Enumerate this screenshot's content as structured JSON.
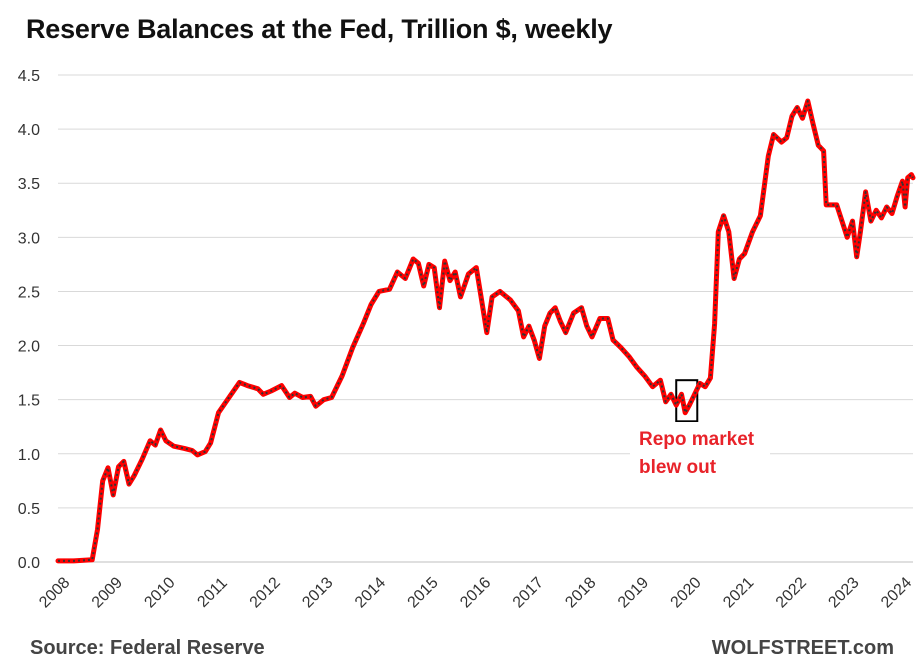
{
  "chart_data": {
    "type": "line",
    "title": "Reserve Balances at the Fed, Trillion $, weekly",
    "xlabel": "",
    "ylabel": "",
    "xlim": [
      2008,
      2024.25
    ],
    "ylim": [
      0,
      4.5
    ],
    "y_ticks": [
      "0.0",
      "0.5",
      "1.0",
      "1.5",
      "2.0",
      "2.5",
      "3.0",
      "3.5",
      "4.0",
      "4.5"
    ],
    "x_ticks": [
      "2008",
      "2009",
      "2010",
      "2011",
      "2012",
      "2013",
      "2014",
      "2015",
      "2016",
      "2017",
      "2018",
      "2019",
      "2020",
      "2021",
      "2022",
      "2023",
      "2024"
    ],
    "grid": "horizontal",
    "series": [
      {
        "name": "",
        "color": "#ff0000",
        "overlay_color": "#333333",
        "points": [
          [
            2008.0,
            0.01
          ],
          [
            2008.3,
            0.01
          ],
          [
            2008.65,
            0.02
          ],
          [
            2008.75,
            0.3
          ],
          [
            2008.85,
            0.75
          ],
          [
            2008.95,
            0.87
          ],
          [
            2009.05,
            0.62
          ],
          [
            2009.15,
            0.88
          ],
          [
            2009.25,
            0.93
          ],
          [
            2009.35,
            0.72
          ],
          [
            2009.45,
            0.8
          ],
          [
            2009.6,
            0.95
          ],
          [
            2009.75,
            1.12
          ],
          [
            2009.85,
            1.08
          ],
          [
            2009.95,
            1.22
          ],
          [
            2010.05,
            1.12
          ],
          [
            2010.2,
            1.07
          ],
          [
            2010.4,
            1.05
          ],
          [
            2010.55,
            1.03
          ],
          [
            2010.65,
            0.99
          ],
          [
            2010.8,
            1.02
          ],
          [
            2010.9,
            1.1
          ],
          [
            2011.05,
            1.38
          ],
          [
            2011.25,
            1.52
          ],
          [
            2011.45,
            1.66
          ],
          [
            2011.6,
            1.63
          ],
          [
            2011.8,
            1.6
          ],
          [
            2011.9,
            1.55
          ],
          [
            2012.05,
            1.58
          ],
          [
            2012.25,
            1.63
          ],
          [
            2012.4,
            1.52
          ],
          [
            2012.5,
            1.56
          ],
          [
            2012.65,
            1.52
          ],
          [
            2012.8,
            1.53
          ],
          [
            2012.9,
            1.44
          ],
          [
            2013.05,
            1.5
          ],
          [
            2013.2,
            1.52
          ],
          [
            2013.4,
            1.72
          ],
          [
            2013.6,
            1.98
          ],
          [
            2013.8,
            2.2
          ],
          [
            2013.95,
            2.38
          ],
          [
            2014.1,
            2.5
          ],
          [
            2014.3,
            2.52
          ],
          [
            2014.45,
            2.68
          ],
          [
            2014.6,
            2.62
          ],
          [
            2014.75,
            2.8
          ],
          [
            2014.85,
            2.76
          ],
          [
            2014.95,
            2.55
          ],
          [
            2015.05,
            2.75
          ],
          [
            2015.15,
            2.72
          ],
          [
            2015.25,
            2.35
          ],
          [
            2015.35,
            2.78
          ],
          [
            2015.45,
            2.6
          ],
          [
            2015.55,
            2.68
          ],
          [
            2015.65,
            2.45
          ],
          [
            2015.8,
            2.66
          ],
          [
            2015.95,
            2.72
          ],
          [
            2016.05,
            2.42
          ],
          [
            2016.15,
            2.12
          ],
          [
            2016.25,
            2.45
          ],
          [
            2016.4,
            2.5
          ],
          [
            2016.6,
            2.42
          ],
          [
            2016.75,
            2.32
          ],
          [
            2016.85,
            2.08
          ],
          [
            2016.95,
            2.18
          ],
          [
            2017.05,
            2.05
          ],
          [
            2017.15,
            1.88
          ],
          [
            2017.25,
            2.18
          ],
          [
            2017.35,
            2.3
          ],
          [
            2017.45,
            2.35
          ],
          [
            2017.55,
            2.22
          ],
          [
            2017.65,
            2.12
          ],
          [
            2017.8,
            2.3
          ],
          [
            2017.95,
            2.35
          ],
          [
            2018.05,
            2.18
          ],
          [
            2018.15,
            2.08
          ],
          [
            2018.3,
            2.25
          ],
          [
            2018.45,
            2.25
          ],
          [
            2018.55,
            2.05
          ],
          [
            2018.7,
            1.98
          ],
          [
            2018.85,
            1.9
          ],
          [
            2019.0,
            1.8
          ],
          [
            2019.15,
            1.72
          ],
          [
            2019.3,
            1.62
          ],
          [
            2019.45,
            1.68
          ],
          [
            2019.55,
            1.48
          ],
          [
            2019.65,
            1.55
          ],
          [
            2019.75,
            1.45
          ],
          [
            2019.85,
            1.55
          ],
          [
            2019.92,
            1.38
          ],
          [
            2020.0,
            1.45
          ],
          [
            2020.1,
            1.55
          ],
          [
            2020.2,
            1.65
          ],
          [
            2020.3,
            1.62
          ],
          [
            2020.4,
            1.7
          ],
          [
            2020.48,
            2.2
          ],
          [
            2020.55,
            3.05
          ],
          [
            2020.65,
            3.2
          ],
          [
            2020.75,
            3.05
          ],
          [
            2020.85,
            2.62
          ],
          [
            2020.95,
            2.8
          ],
          [
            2021.05,
            2.85
          ],
          [
            2021.2,
            3.05
          ],
          [
            2021.35,
            3.2
          ],
          [
            2021.5,
            3.75
          ],
          [
            2021.6,
            3.95
          ],
          [
            2021.75,
            3.88
          ],
          [
            2021.85,
            3.92
          ],
          [
            2021.95,
            4.12
          ],
          [
            2022.05,
            4.2
          ],
          [
            2022.15,
            4.1
          ],
          [
            2022.25,
            4.26
          ],
          [
            2022.35,
            4.05
          ],
          [
            2022.45,
            3.85
          ],
          [
            2022.55,
            3.8
          ],
          [
            2022.6,
            3.3
          ],
          [
            2022.7,
            3.3
          ],
          [
            2022.8,
            3.3
          ],
          [
            2022.9,
            3.15
          ],
          [
            2023.0,
            3.0
          ],
          [
            2023.1,
            3.15
          ],
          [
            2023.18,
            2.82
          ],
          [
            2023.25,
            3.05
          ],
          [
            2023.35,
            3.42
          ],
          [
            2023.45,
            3.15
          ],
          [
            2023.55,
            3.25
          ],
          [
            2023.65,
            3.18
          ],
          [
            2023.75,
            3.28
          ],
          [
            2023.85,
            3.22
          ],
          [
            2023.95,
            3.38
          ],
          [
            2024.05,
            3.52
          ],
          [
            2024.1,
            3.28
          ],
          [
            2024.15,
            3.55
          ],
          [
            2024.22,
            3.58
          ],
          [
            2024.25,
            3.55
          ]
        ]
      }
    ],
    "annotations": [
      {
        "text_lines": [
          "Repo market",
          "blew out"
        ],
        "color": "#e8232a",
        "box_x_range": [
          2019.75,
          2020.15
        ],
        "box_y_range": [
          1.3,
          1.68
        ]
      }
    ]
  },
  "footer": {
    "source": "Source: Federal Reserve",
    "brand": "WOLFSTREET.com"
  }
}
